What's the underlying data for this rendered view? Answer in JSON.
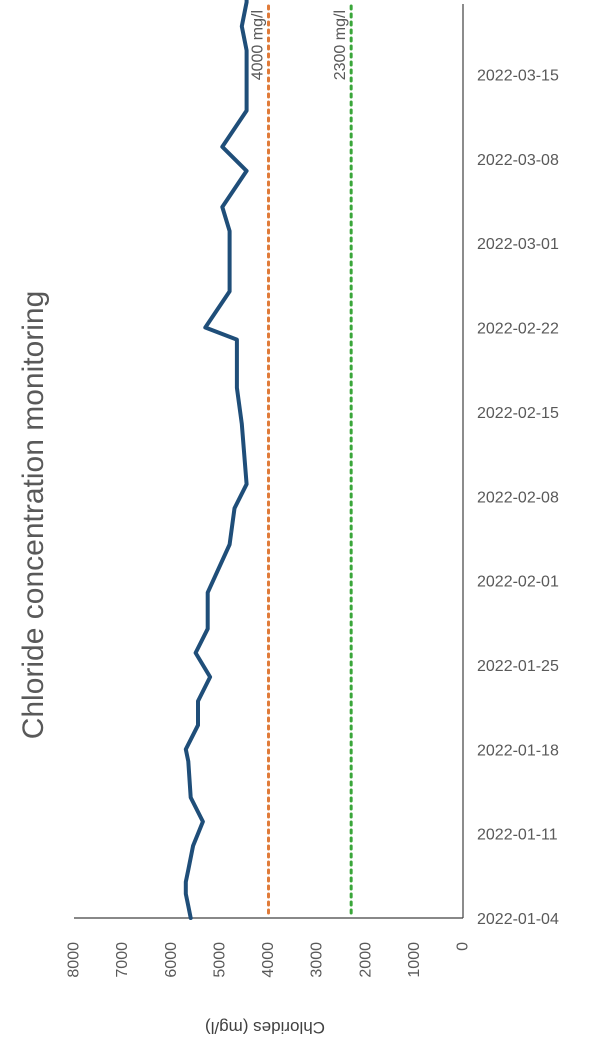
{
  "chart_data": {
    "type": "line",
    "title": "Chloride concentration monitoring",
    "xlabel": "",
    "ylabel": "Chlorides (mg/l)",
    "ylim": [
      0,
      8000
    ],
    "y_ticks": [
      0,
      1000,
      2000,
      3000,
      4000,
      5000,
      6000,
      7000,
      8000
    ],
    "x_ticks": [
      "2022-01-04",
      "2022-01-11",
      "2022-01-18",
      "2022-01-25",
      "2022-02-01",
      "2022-02-08",
      "2022-02-15",
      "2022-02-22",
      "2022-03-01",
      "2022-03-08",
      "2022-03-15"
    ],
    "grid": false,
    "series": [
      {
        "color": "#1f4e79",
        "points": [
          {
            "x": "2022-01-04",
            "y": 5600
          },
          {
            "x": "2022-01-05",
            "y": 5650
          },
          {
            "x": "2022-01-06",
            "y": 5700
          },
          {
            "x": "2022-01-07",
            "y": 5700
          },
          {
            "x": "2022-01-08",
            "y": 5650
          },
          {
            "x": "2022-01-10",
            "y": 5550
          },
          {
            "x": "2022-01-12",
            "y": 5350
          },
          {
            "x": "2022-01-14",
            "y": 5600
          },
          {
            "x": "2022-01-17",
            "y": 5650
          },
          {
            "x": "2022-01-18",
            "y": 5700
          },
          {
            "x": "2022-01-20",
            "y": 5450
          },
          {
            "x": "2022-01-22",
            "y": 5450
          },
          {
            "x": "2022-01-24",
            "y": 5200
          },
          {
            "x": "2022-01-26",
            "y": 5500
          },
          {
            "x": "2022-01-28",
            "y": 5250
          },
          {
            "x": "2022-01-31",
            "y": 5250
          },
          {
            "x": "2022-02-04",
            "y": 4800
          },
          {
            "x": "2022-02-07",
            "y": 4700
          },
          {
            "x": "2022-02-09",
            "y": 4450
          },
          {
            "x": "2022-02-14",
            "y": 4550
          },
          {
            "x": "2022-02-17",
            "y": 4650
          },
          {
            "x": "2022-02-21",
            "y": 4650
          },
          {
            "x": "2022-02-22",
            "y": 5300
          },
          {
            "x": "2022-02-25",
            "y": 4800
          },
          {
            "x": "2022-03-02",
            "y": 4800
          },
          {
            "x": "2022-03-04",
            "y": 4950
          },
          {
            "x": "2022-03-07",
            "y": 4450
          },
          {
            "x": "2022-03-09",
            "y": 4950
          },
          {
            "x": "2022-03-12",
            "y": 4450
          },
          {
            "x": "2022-03-17",
            "y": 4450
          },
          {
            "x": "2022-03-19",
            "y": 4550
          },
          {
            "x": "2022-03-21",
            "y": 4450
          },
          {
            "x": "2022-03-24",
            "y": 4450
          }
        ]
      }
    ],
    "reference_lines": [
      {
        "value": 4000,
        "label": "4000 mg/l",
        "color": "#e07b39"
      },
      {
        "value": 2300,
        "label": "2300 mg/l",
        "color": "#3aa63a"
      }
    ]
  }
}
